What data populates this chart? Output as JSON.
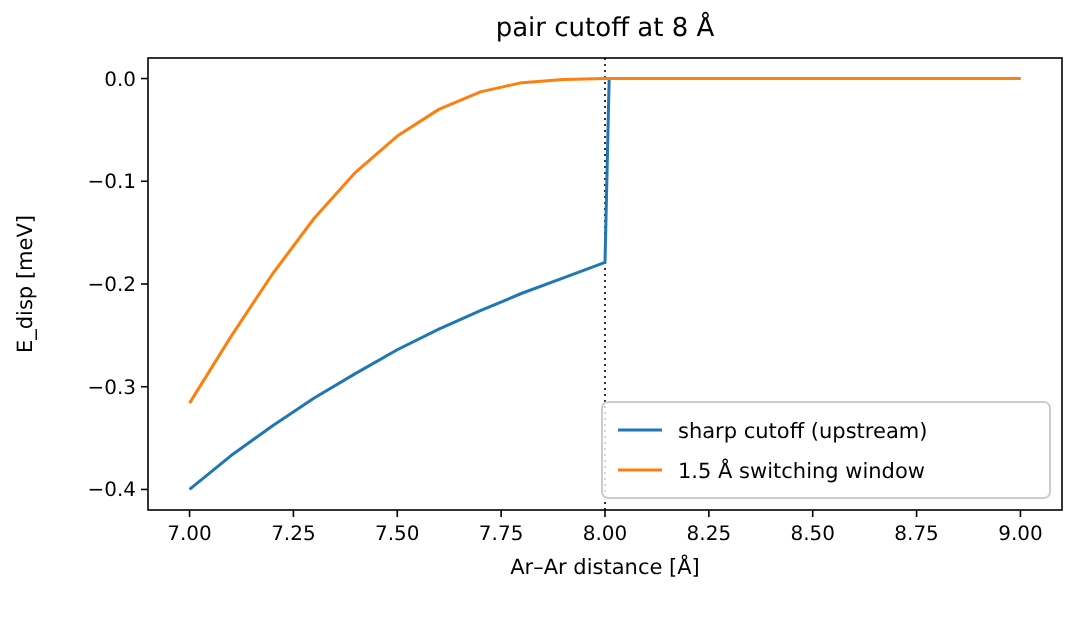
{
  "chart_data": {
    "type": "line",
    "title": "pair cutoff at 8 Å",
    "xlabel": "Ar–Ar distance [Å]",
    "ylabel": "E_disp [meV]",
    "xlim": [
      6.9,
      9.1
    ],
    "ylim": [
      -0.42,
      0.02
    ],
    "xticks": [
      {
        "value": 7,
        "label": "7.00"
      },
      {
        "value": 7.25,
        "label": "7.25"
      },
      {
        "value": 7.5,
        "label": "7.50"
      },
      {
        "value": 7.75,
        "label": "7.75"
      },
      {
        "value": 8,
        "label": "8.00"
      },
      {
        "value": 8.25,
        "label": "8.25"
      },
      {
        "value": 8.5,
        "label": "8.50"
      },
      {
        "value": 8.75,
        "label": "8.75"
      },
      {
        "value": 9,
        "label": "9.00"
      }
    ],
    "yticks": [
      {
        "value": -0.4,
        "label": "−0.4"
      },
      {
        "value": -0.3,
        "label": "−0.3"
      },
      {
        "value": -0.2,
        "label": "−0.2"
      },
      {
        "value": -0.1,
        "label": "−0.1"
      },
      {
        "value": 0,
        "label": "0.0"
      }
    ],
    "series": [
      {
        "name": "sharp cutoff (upstream)",
        "color": "#1f77b4",
        "x": [
          7.0,
          7.1,
          7.2,
          7.3,
          7.4,
          7.5,
          7.6,
          7.7,
          7.8,
          7.9,
          8.0,
          8.01,
          9.0
        ],
        "values": [
          -0.4,
          -0.367,
          -0.338,
          -0.311,
          -0.287,
          -0.264,
          -0.244,
          -0.226,
          -0.209,
          -0.194,
          -0.179,
          0,
          0
        ]
      },
      {
        "name": "1.5 Å switching window",
        "color": "#ff7f0e",
        "x": [
          7.0,
          7.1,
          7.2,
          7.3,
          7.4,
          7.5,
          7.6,
          7.7,
          7.8,
          7.9,
          8.0,
          9.0
        ],
        "values": [
          -0.316,
          -0.251,
          -0.19,
          -0.136,
          -0.091,
          -0.056,
          -0.03,
          -0.013,
          -0.004,
          -0.001,
          0,
          0
        ]
      }
    ],
    "ref_lines": [
      {
        "axis": "x",
        "value": 8,
        "color": "#000000",
        "line_style": "dotted"
      }
    ],
    "legend": "bottom right",
    "grid": false,
    "marker": "none",
    "line_style": "solid"
  }
}
